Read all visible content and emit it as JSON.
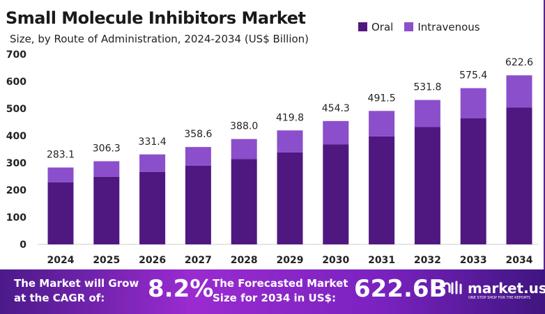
{
  "chart_data": {
    "type": "bar",
    "stacked": true,
    "title": "Small Molecule Inhibitors Market",
    "subtitle": "Size, by Route of Administration, 2024-2034 (US$ Billion)",
    "categories": [
      "2024",
      "2025",
      "2026",
      "2027",
      "2028",
      "2029",
      "2030",
      "2031",
      "2032",
      "2033",
      "2034"
    ],
    "series": [
      {
        "name": "Oral",
        "color": "#4f1880",
        "values": [
          229,
          249,
          267,
          290,
          314,
          339,
          368,
          398,
          432,
          465,
          504
        ]
      },
      {
        "name": "Intravenous",
        "color": "#8b4fcb",
        "values": [
          54.1,
          57.3,
          64.4,
          68.6,
          74.0,
          80.8,
          86.3,
          93.5,
          99.8,
          110.4,
          118.6
        ]
      }
    ],
    "totals": [
      "283.1",
      "306.3",
      "331.4",
      "358.6",
      "388.0",
      "419.8",
      "454.3",
      "491.5",
      "531.8",
      "575.4",
      "622.6"
    ],
    "ylim": [
      0,
      700
    ],
    "yticks": [
      "0",
      "100",
      "200",
      "300",
      "400",
      "500",
      "600",
      "700"
    ],
    "grid": false,
    "legend": "top-right"
  },
  "footer": {
    "cagr_text_1": "The Market will Grow",
    "cagr_text_2": "at the CAGR of:",
    "cagr_value": "8.2%",
    "forecast_text_1": "The Forecasted Market",
    "forecast_text_2": "Size for 2034 in US$:",
    "forecast_value": "622.6B",
    "brand": "market.us",
    "brand_tagline": "ONE STOP SHOP FOR THE REPORTS"
  }
}
